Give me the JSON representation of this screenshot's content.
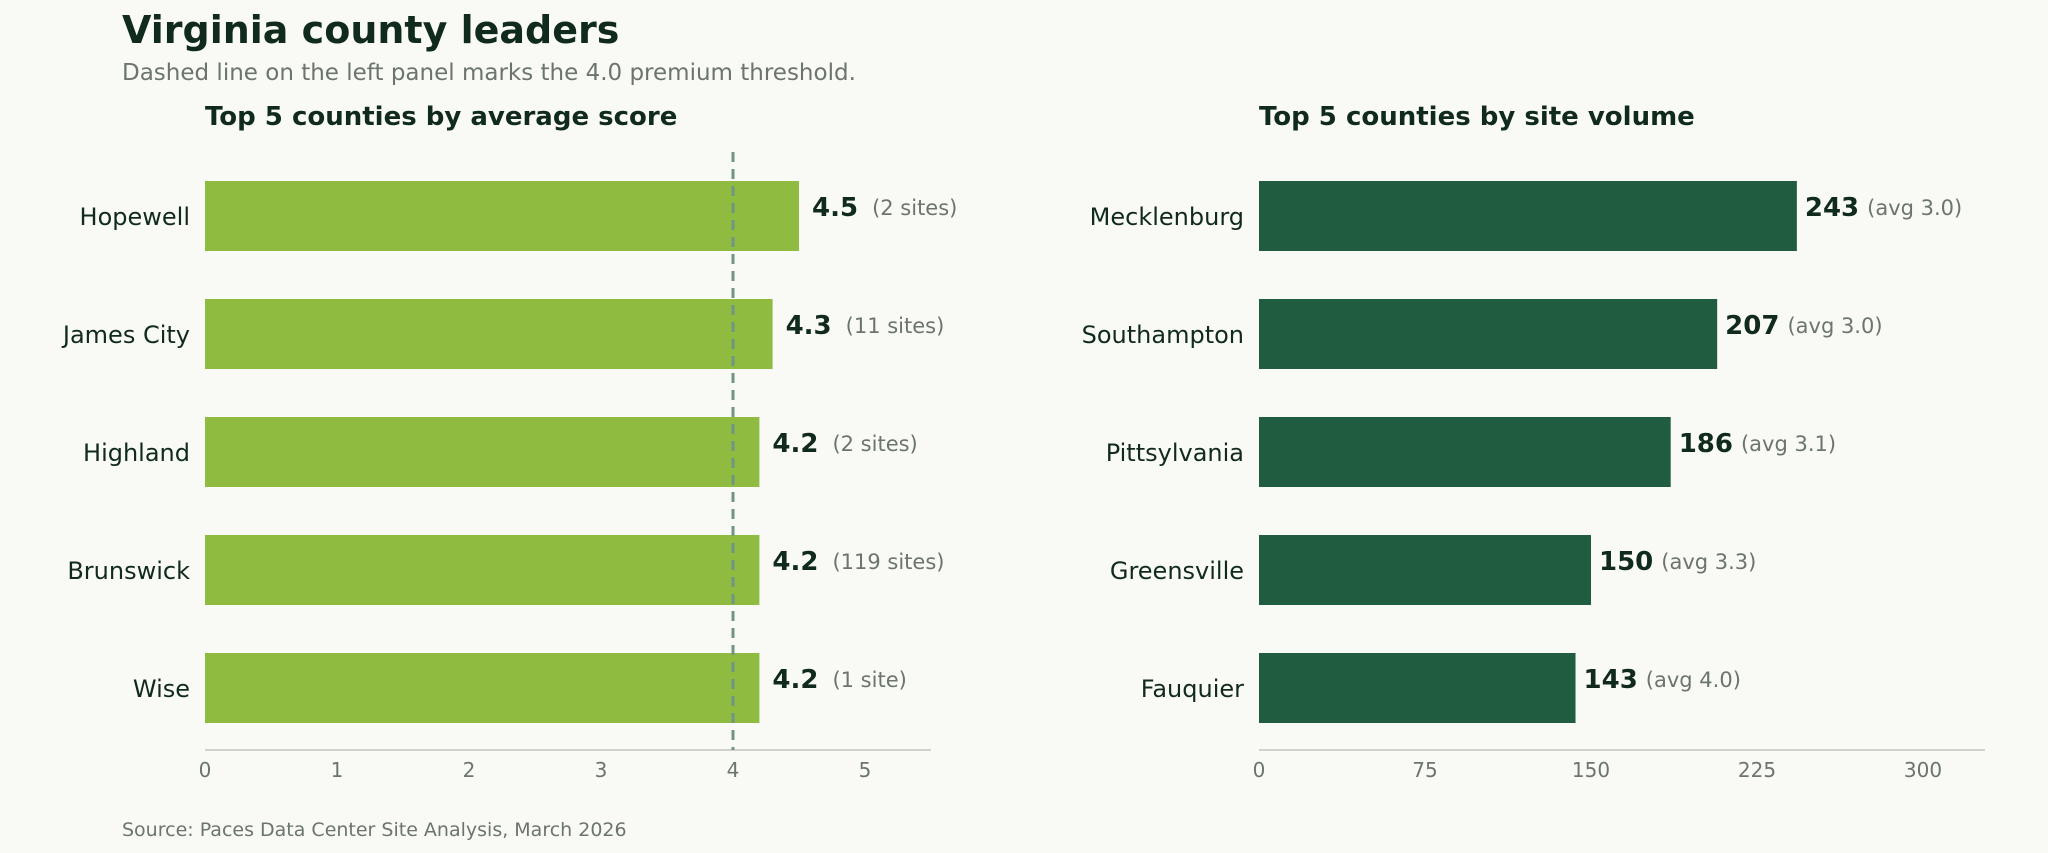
{
  "title": "Virginia county leaders",
  "subtitle": "Dashed line on the left panel marks the 4.0 premium threshold.",
  "source": "Source: Paces Data Center Site Analysis, March 2026",
  "colors": {
    "background": "#f9faf5",
    "title": "#112a1e",
    "muted": "#6b756e",
    "score_bar": "#8fbc40",
    "volume_bar": "#1f5c40",
    "threshold": "#6f9685",
    "axis": "#cfd3cc"
  },
  "chart_data": [
    {
      "type": "bar",
      "orientation": "horizontal",
      "title": "Top 5 counties by average score",
      "categories": [
        "Hopewell",
        "James City",
        "Highland",
        "Brunswick",
        "Wise"
      ],
      "values": [
        4.5,
        4.3,
        4.2,
        4.2,
        4.2
      ],
      "value_labels": [
        "4.5",
        "4.3",
        "4.2",
        "4.2",
        "4.2"
      ],
      "annotations": [
        "(2 sites)",
        "(11 sites)",
        "(2 sites)",
        "(119 sites)",
        "(1 site)"
      ],
      "xlim": [
        0,
        5.5
      ],
      "xticks": [
        0,
        1,
        2,
        3,
        4,
        5
      ],
      "xtick_labels": [
        "0",
        "1",
        "2",
        "3",
        "4",
        "5"
      ],
      "threshold": 4.0,
      "xlabel": "",
      "ylabel": ""
    },
    {
      "type": "bar",
      "orientation": "horizontal",
      "title": "Top 5 counties by site volume",
      "categories": [
        "Mecklenburg",
        "Southampton",
        "Pittsylvania",
        "Greensville",
        "Fauquier"
      ],
      "values": [
        243,
        207,
        186,
        150,
        143
      ],
      "value_labels": [
        "243",
        "207",
        "186",
        "150",
        "143"
      ],
      "annotations": [
        "(avg 3.0)",
        "(avg 3.0)",
        "(avg 3.1)",
        "(avg 3.3)",
        "(avg 4.0)"
      ],
      "xlim": [
        0,
        328
      ],
      "xticks": [
        0,
        75,
        150,
        225,
        300
      ],
      "xtick_labels": [
        "0",
        "75",
        "150",
        "225",
        "300"
      ],
      "xlabel": "",
      "ylabel": ""
    }
  ]
}
